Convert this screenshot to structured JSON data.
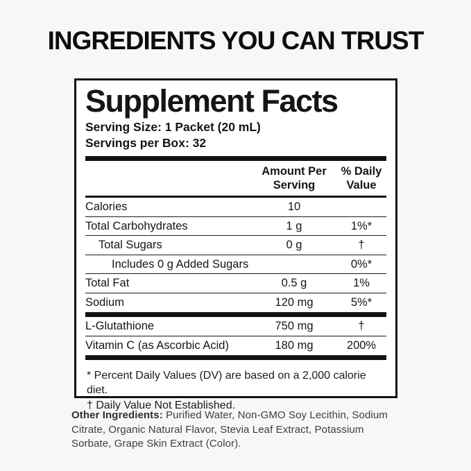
{
  "page": {
    "title": "INGREDIENTS YOU CAN TRUST"
  },
  "panel": {
    "title": "Supplement Facts",
    "serving_size": "Serving Size: 1 Packet (20 mL)",
    "servings_per_box": "Servings per Box: 32",
    "columns": {
      "amount": "Amount Per\nServing",
      "daily_value": "% Daily\nValue"
    },
    "rows": [
      {
        "label": "Calories",
        "amount": "10",
        "dv": "",
        "indent": 0
      },
      {
        "label": "Total Carbohydrates",
        "amount": "1 g",
        "dv": "1%*",
        "indent": 0
      },
      {
        "label": "Total Sugars",
        "amount": "0 g",
        "dv": "†",
        "indent": 1
      },
      {
        "label": "Includes 0 g Added Sugars",
        "amount": "",
        "dv": "0%*",
        "indent": 2
      },
      {
        "label": "Total Fat",
        "amount": "0.5 g",
        "dv": "1%",
        "indent": 0
      },
      {
        "label": "Sodium",
        "amount": "120 mg",
        "dv": "5%*",
        "indent": 0
      }
    ],
    "supplement_rows": [
      {
        "label": "L-Glutathione",
        "amount": "750 mg",
        "dv": "†",
        "indent": 0
      },
      {
        "label": "Vitamin C (as Ascorbic Acid)",
        "amount": "180 mg",
        "dv": "200%",
        "indent": 0
      }
    ],
    "footnotes": [
      "* Percent Daily Values (DV) are based on a 2,000 calorie diet.",
      "† Daily Value Not Established."
    ]
  },
  "other_ingredients": {
    "label": "Other Ingredients:",
    "text": " Purified Water, Non-GMO Soy Lecithin, Sodium Citrate, Organic Natural Flavor, Stevia Leaf Extract, Potassium Sorbate, Grape Skin Extract (Color)."
  },
  "colors": {
    "background": "#f7f7f8",
    "panel_background": "#ffffff",
    "border": "#121212",
    "text": "#151515",
    "other_ingredients_text": "#3d3d3d"
  }
}
